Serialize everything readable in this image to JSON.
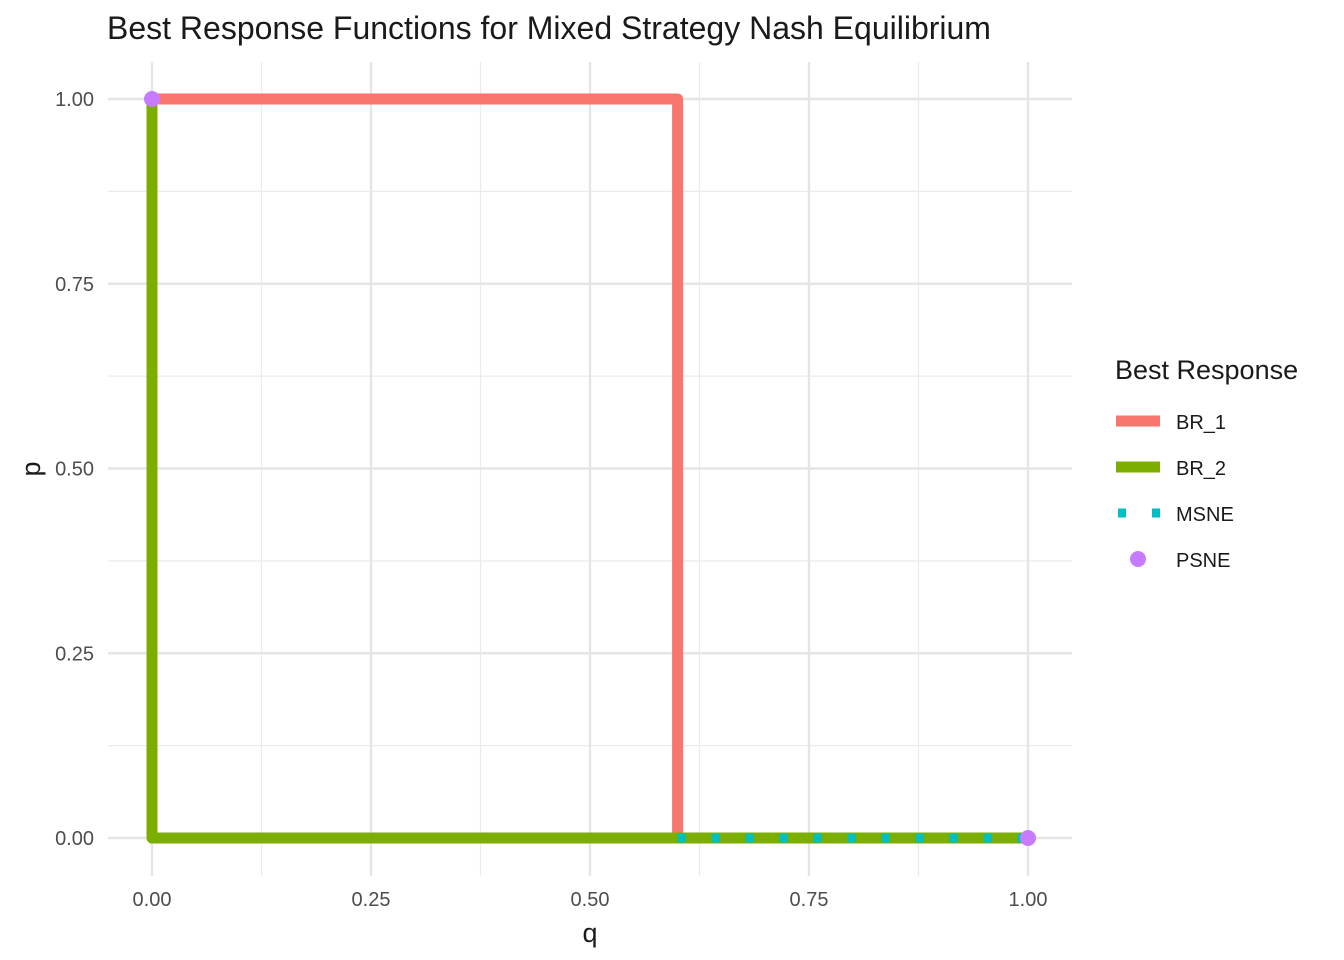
{
  "chart_data": {
    "type": "line",
    "title": "Best Response Functions for Mixed Strategy Nash Equilibrium",
    "xlabel": "q",
    "ylabel": "p",
    "xlim": [
      0,
      1
    ],
    "ylim": [
      0,
      1
    ],
    "x_ticks": [
      "0.00",
      "0.25",
      "0.50",
      "0.75",
      "1.00"
    ],
    "y_ticks": [
      "0.00",
      "0.25",
      "0.50",
      "0.75",
      "1.00"
    ],
    "grid": true,
    "legend": {
      "title": "Best Response",
      "position": "right",
      "items": [
        {
          "label": "BR_1",
          "kind": "line",
          "color": "#F8766D"
        },
        {
          "label": "BR_2",
          "kind": "line",
          "color": "#7CAE00"
        },
        {
          "label": "MSNE",
          "kind": "dotted",
          "color": "#00BFC4"
        },
        {
          "label": "PSNE",
          "kind": "point",
          "color": "#C77CFF"
        }
      ]
    },
    "series": [
      {
        "name": "BR_1",
        "style": "solid",
        "color": "#F8766D",
        "points": [
          [
            0,
            1
          ],
          [
            0.6,
            1
          ],
          [
            0.6,
            0
          ],
          [
            1,
            0
          ]
        ]
      },
      {
        "name": "BR_2",
        "style": "solid",
        "color": "#7CAE00",
        "points": [
          [
            0,
            1
          ],
          [
            0,
            0
          ],
          [
            1,
            0
          ]
        ]
      },
      {
        "name": "MSNE",
        "style": "dotted",
        "color": "#00BFC4",
        "points": [
          [
            0.6,
            0
          ],
          [
            1,
            0
          ]
        ]
      },
      {
        "name": "PSNE",
        "style": "points",
        "color": "#C77CFF",
        "points": [
          [
            0,
            1
          ],
          [
            1,
            0
          ]
        ]
      }
    ]
  }
}
